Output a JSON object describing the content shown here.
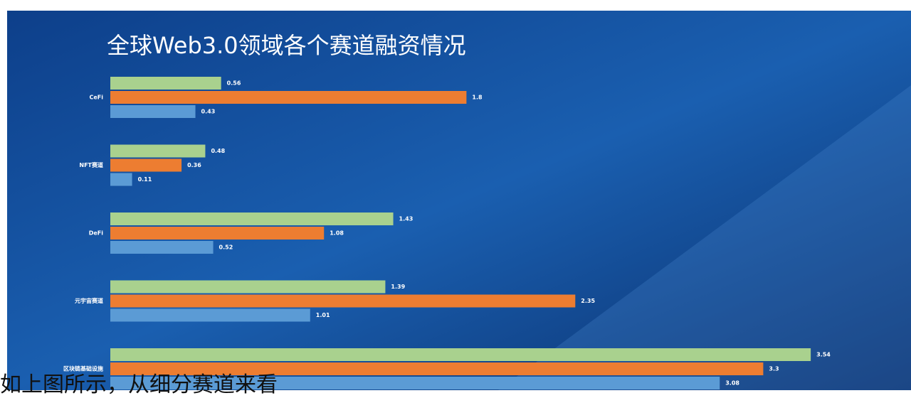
{
  "chart_data": {
    "type": "bar",
    "orientation": "horizontal",
    "title": "全球Web3.0领域各个赛道融资情况",
    "categories": [
      "CeFi",
      "NFT赛道",
      "DeFi",
      "元宇宙赛道",
      "区块链基础设施"
    ],
    "series": [
      {
        "color": "#a9d18e",
        "values": [
          0.56,
          0.48,
          1.43,
          1.39,
          3.54
        ]
      },
      {
        "color": "#ed7d31",
        "values": [
          1.8,
          0.36,
          1.08,
          2.35,
          3.3
        ]
      },
      {
        "color": "#5b9bd5",
        "values": [
          0.43,
          0.11,
          0.52,
          1.01,
          3.08
        ]
      }
    ]
  },
  "caption": "如上图所示，从细分赛道来看"
}
